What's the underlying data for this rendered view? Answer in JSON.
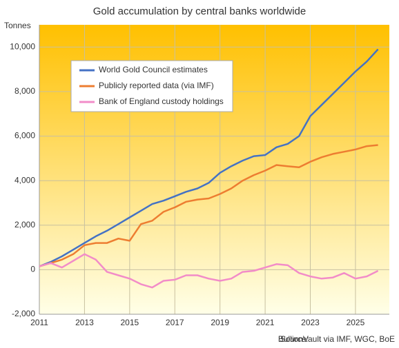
{
  "chart_data": {
    "type": "line",
    "title": "Gold accumulation  by central banks worldwide",
    "y_label": "Tonnes",
    "source_label": "Source:",
    "source": "BullionVault via IMF, WGC, BoE",
    "x": [
      2011,
      2011.5,
      2012,
      2012.5,
      2013,
      2013.5,
      2014,
      2014.5,
      2015,
      2015.5,
      2016,
      2016.5,
      2017,
      2017.5,
      2018,
      2018.5,
      2019,
      2019.5,
      2020,
      2020.5,
      2021,
      2021.5,
      2022,
      2022.5,
      2023,
      2023.5,
      2024,
      2024.5,
      2025,
      2025.5,
      2026
    ],
    "series": [
      {
        "name": "World Gold Council estimates",
        "color": "#4472c4",
        "values": [
          150,
          350,
          600,
          900,
          1200,
          1500,
          1750,
          2050,
          2350,
          2650,
          2950,
          3100,
          3300,
          3500,
          3650,
          3900,
          4350,
          4650,
          4900,
          5100,
          5150,
          5500,
          5650,
          6000,
          6900,
          7400,
          7900,
          8400,
          8900,
          9350,
          9900
        ]
      },
      {
        "name": "Publicly reported data (via IMF)",
        "color": "#ed7d31",
        "values": [
          150,
          300,
          450,
          700,
          1100,
          1200,
          1200,
          1400,
          1300,
          2050,
          2200,
          2600,
          2800,
          3050,
          3150,
          3200,
          3400,
          3650,
          4000,
          4250,
          4450,
          4700,
          4650,
          4600,
          4850,
          5050,
          5200,
          5300,
          5400,
          5550,
          5600
        ]
      },
      {
        "name": "Bank of England custody holdings",
        "color": "#f28cc8",
        "values": [
          150,
          300,
          100,
          400,
          700,
          450,
          -100,
          -250,
          -400,
          -650,
          -800,
          -500,
          -450,
          -250,
          -250,
          -400,
          -500,
          -400,
          -100,
          -50,
          100,
          250,
          200,
          -150,
          -300,
          -400,
          -350,
          -150,
          -400,
          -300,
          -50
        ]
      }
    ],
    "xlim": [
      2011,
      2026.5
    ],
    "xticks": [
      2011,
      2013,
      2015,
      2017,
      2019,
      2021,
      2023,
      2025
    ],
    "ylim": [
      -2000,
      11000
    ],
    "yticks": [
      {
        "value": -2000,
        "label": "-2,000"
      },
      0,
      {
        "value": 2000,
        "label": "2,000"
      },
      {
        "value": 4000,
        "label": "4,000"
      },
      {
        "value": 6000,
        "label": "6,000"
      },
      {
        "value": 8000,
        "label": "8,000"
      },
      {
        "value": 10000,
        "label": "10,000"
      }
    ],
    "grid": true,
    "legend": "upper left"
  }
}
